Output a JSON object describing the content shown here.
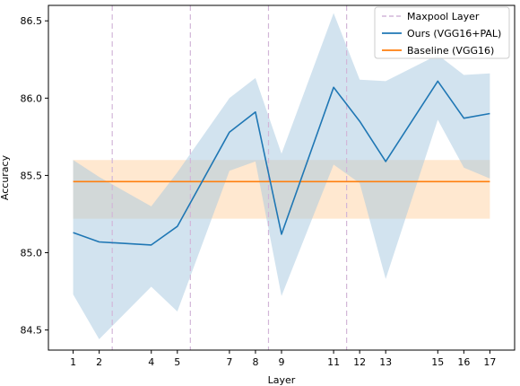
{
  "chart_data": {
    "type": "line",
    "xlabel": "Layer",
    "ylabel": "Accuracy",
    "x_ticks": [
      1,
      2,
      4,
      5,
      7,
      8,
      9,
      11,
      12,
      13,
      15,
      16,
      17
    ],
    "x_tick_labels": [
      "1",
      "2",
      "4",
      "5",
      "7",
      "8",
      "9",
      "11",
      "12",
      "13",
      "15",
      "16",
      "17"
    ],
    "ylim": [
      84.37,
      86.6
    ],
    "y_ticks": [
      84.5,
      85.0,
      85.5,
      86.0,
      86.5
    ],
    "y_tick_labels": [
      "84.5",
      "85.0",
      "85.5",
      "86.0",
      "86.5"
    ],
    "grid": false,
    "legend_position": "top-right",
    "maxpool_layers_x": [
      2.5,
      5.5,
      8.5,
      11.5
    ],
    "series": [
      {
        "name": "Ours (VGG16+PAL)",
        "color": "#1f77b4",
        "band_color": "#a6c8e0",
        "x": [
          1,
          2,
          4,
          5,
          7,
          8,
          9,
          11,
          12,
          13,
          15,
          16,
          17
        ],
        "values": [
          85.13,
          85.07,
          85.05,
          85.17,
          85.78,
          85.91,
          85.12,
          86.07,
          85.85,
          85.59,
          86.11,
          85.87,
          85.9
        ],
        "upper": [
          85.6,
          85.49,
          85.3,
          85.52,
          86.0,
          86.13,
          85.64,
          86.55,
          86.12,
          86.11,
          86.28,
          86.15,
          86.16
        ],
        "lower": [
          84.73,
          84.44,
          84.78,
          84.62,
          85.53,
          85.59,
          84.72,
          85.57,
          85.45,
          84.83,
          85.86,
          85.55,
          85.48
        ]
      },
      {
        "name": "Baseline (VGG16)",
        "color": "#ff7f0e",
        "band_color": "#ffd8b0",
        "x": [
          1,
          17
        ],
        "values": [
          85.46,
          85.46
        ],
        "upper": [
          85.6,
          85.6
        ],
        "lower": [
          85.22,
          85.22
        ]
      }
    ],
    "legend": [
      {
        "label": "Maxpool Layer",
        "style": "dashed",
        "color": "#d2b6d8"
      },
      {
        "label": "Ours (VGG16+PAL)",
        "style": "solid",
        "color": "#1f77b4"
      },
      {
        "label": "Baseline (VGG16)",
        "style": "solid",
        "color": "#ff7f0e"
      }
    ]
  }
}
